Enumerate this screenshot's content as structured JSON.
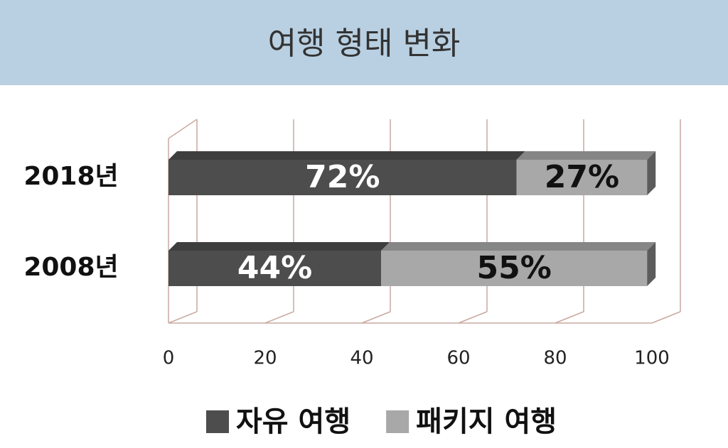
{
  "chart_data": {
    "type": "stacked-bar-horizontal",
    "title": "여행 형태 변화",
    "categories": [
      "2018년",
      "2008년"
    ],
    "series": [
      {
        "name": "자유 여행",
        "color": "#4d4d4d",
        "values": [
          72,
          44
        ],
        "value_labels": [
          "72%",
          "44%"
        ]
      },
      {
        "name": "패키지 여행",
        "color": "#a8a8a8",
        "values": [
          27,
          55
        ],
        "value_labels": [
          "27%",
          "55%"
        ]
      }
    ],
    "xlim": [
      0,
      100
    ],
    "xticks": [
      0,
      20,
      40,
      60,
      80,
      100
    ],
    "grid": true
  }
}
